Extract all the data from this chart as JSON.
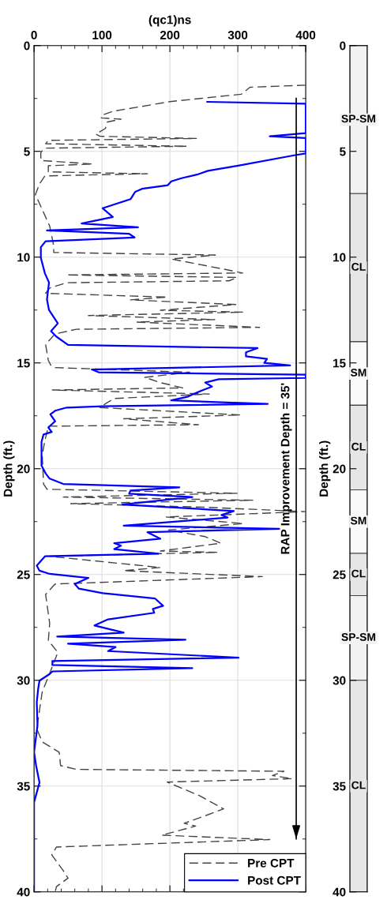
{
  "chart_data": [
    {
      "type": "line",
      "xlabel": "(qc1)ns",
      "ylabel": "Depth (ft.)",
      "xlim": [
        0,
        400
      ],
      "ylim": [
        40,
        0
      ],
      "xticks": [
        0,
        {
          "value": 20,
          "label": null
        },
        {
          "value": 40,
          "label": null
        },
        {
          "value": 60,
          "label": null
        },
        {
          "value": 80,
          "label": null
        },
        100,
        {
          "value": 120,
          "label": null
        },
        {
          "value": 140,
          "label": null
        },
        {
          "value": 160,
          "label": null
        },
        {
          "value": 180,
          "label": null
        },
        200,
        {
          "value": 220,
          "label": null
        },
        {
          "value": 240,
          "label": null
        },
        {
          "value": 260,
          "label": null
        },
        {
          "value": 280,
          "label": null
        },
        300,
        {
          "value": 320,
          "label": null
        },
        {
          "value": 340,
          "label": null
        },
        {
          "value": 360,
          "label": null
        },
        {
          "value": 380,
          "label": null
        },
        400
      ],
      "yticks": [
        0,
        {
          "value": 2.5,
          "label": null
        },
        5,
        {
          "value": 7.5,
          "label": null
        },
        10,
        {
          "value": 12.5,
          "label": null
        },
        15,
        {
          "value": 17.5,
          "label": null
        },
        20,
        {
          "value": 22.5,
          "label": null
        },
        25,
        {
          "value": 27.5,
          "label": null
        },
        30,
        {
          "value": 32.5,
          "label": null
        },
        35,
        {
          "value": 37.5,
          "label": null
        },
        40
      ],
      "grid": true,
      "legend": "bottom right",
      "series": [
        {
          "name": "Pre CPT",
          "color": "#444444",
          "line_style": "dashed",
          "x": [
            400,
            318,
            305,
            200,
            116,
            99,
            99,
            128,
            108,
            105,
            91,
            97,
            239,
            21,
            17,
            225,
            16,
            10,
            10,
            87,
            21,
            21,
            167,
            16,
            8,
            2,
            23,
            29,
            29,
            267,
            202,
            283,
            307,
            48,
            299,
            287,
            48,
            23,
            17,
            196,
            142,
            297,
            186,
            308,
            80,
            266,
            151,
            332,
            62,
            31,
            17,
            21,
            25,
            31,
            229,
            163,
            186,
            219,
            27,
            258,
            118,
            107,
            97,
            304,
            132,
            242,
            21,
            16,
            12,
            14,
            19,
            299,
            43,
            322,
            54,
            252,
            400,
            194,
            308,
            198,
            252,
            275,
            186,
            271,
            23,
            186,
            132,
            336,
            31,
            17,
            23,
            21,
            35,
            23,
            12,
            4,
            12,
            37,
            39,
            62,
            368,
            351,
            380,
            196,
            244,
            279,
            248,
            221,
            238,
            188,
            347,
            33,
            26,
            43,
            50,
            33,
            31
          ],
          "values": [
            1.87,
            1.97,
            2.3,
            2.65,
            3.11,
            3.3,
            3.42,
            3.48,
            3.61,
            3.92,
            4.19,
            4.29,
            4.39,
            4.48,
            4.64,
            4.76,
            4.85,
            5.04,
            5.43,
            5.6,
            5.68,
            5.97,
            6.06,
            6.16,
            6.54,
            7.04,
            8.53,
            9.47,
            9.78,
            9.9,
            10.09,
            10.59,
            10.75,
            10.84,
            10.96,
            11.12,
            11.21,
            11.46,
            11.71,
            11.89,
            12.02,
            12.24,
            12.51,
            12.6,
            12.76,
            12.95,
            13.07,
            13.32,
            13.41,
            13.63,
            14.13,
            14.88,
            15.13,
            15.22,
            15.44,
            15.68,
            15.93,
            16.18,
            16.28,
            16.47,
            16.68,
            16.89,
            17.11,
            17.46,
            17.64,
            17.92,
            17.99,
            18.67,
            19.35,
            20.72,
            20.97,
            21.16,
            21.34,
            21.49,
            21.65,
            21.82,
            22.03,
            22.28,
            22.59,
            22.9,
            23.21,
            23.52,
            23.89,
            23.95,
            24.14,
            24.67,
            24.82,
            25.1,
            25.45,
            25.94,
            27.31,
            28.12,
            28.68,
            29.67,
            30.55,
            32.29,
            32.91,
            33.4,
            34.03,
            34.21,
            34.3,
            34.5,
            34.65,
            34.81,
            35.46,
            36.08,
            36.45,
            36.76,
            36.89,
            37.32,
            37.53,
            37.88,
            38.25,
            39.0,
            39.35,
            39.75,
            40.0
          ]
        },
        {
          "name": "Post CPT",
          "color": "#0000ff",
          "line_style": "solid",
          "x": [
            255,
            400,
            400,
            347,
            400,
            400,
            386,
            302,
            256,
            240,
            217,
            202,
            197,
            159,
            149,
            142,
            101,
            116,
            70,
            153,
            19,
            140,
            148,
            17,
            10,
            10,
            16,
            22,
            19,
            22,
            35,
            25,
            33,
            50,
            329,
            312,
            312,
            343,
            339,
            377,
            85,
            95,
            400,
            400,
            272,
            252,
            262,
            252,
            233,
            227,
            202,
            344,
            101,
            48,
            31,
            24,
            31,
            21,
            26,
            14,
            11,
            11,
            17,
            23,
            43,
            214,
            142,
            140,
            233,
            130,
            294,
            276,
            285,
            132,
            361,
            167,
            186,
            118,
            128,
            118,
            183,
            16,
            4,
            8,
            23,
            80,
            60,
            66,
            101,
            178,
            190,
            175,
            177,
            109,
            89,
            132,
            34,
            223,
            50,
            120,
            109,
            301,
            27,
            27,
            233,
            27,
            23,
            8,
            6,
            4,
            5,
            5,
            0,
            3,
            8,
            0,
            0
          ],
          "values": [
            2.66,
            2.75,
            4.14,
            4.29,
            4.37,
            5.1,
            5.17,
            5.67,
            5.92,
            6.1,
            6.27,
            6.42,
            6.6,
            6.77,
            6.91,
            7.26,
            7.69,
            8.1,
            8.41,
            8.59,
            8.74,
            8.9,
            9.07,
            9.25,
            9.53,
            10.03,
            10.77,
            11.2,
            12.0,
            12.5,
            13.13,
            13.5,
            13.76,
            14.15,
            14.3,
            14.5,
            14.69,
            14.81,
            15.0,
            15.12,
            15.31,
            15.44,
            15.56,
            15.71,
            15.77,
            15.93,
            16.12,
            16.24,
            16.49,
            16.59,
            16.77,
            16.94,
            17.05,
            17.11,
            17.26,
            17.43,
            17.76,
            18.05,
            18.26,
            18.38,
            18.73,
            19.85,
            20.22,
            20.47,
            20.72,
            20.88,
            21.03,
            21.18,
            21.34,
            21.69,
            22.0,
            22.19,
            22.31,
            22.69,
            22.84,
            23.0,
            23.31,
            23.52,
            23.64,
            23.8,
            24.02,
            24.14,
            24.58,
            24.82,
            24.97,
            25.16,
            25.45,
            25.67,
            25.88,
            26.13,
            26.48,
            26.63,
            26.81,
            27.12,
            27.41,
            27.75,
            27.93,
            28.08,
            28.27,
            28.43,
            28.62,
            28.93,
            29.09,
            29.28,
            29.43,
            29.58,
            29.7,
            30.02,
            30.42,
            31.04,
            32.04,
            32.16,
            33.4,
            34.03,
            34.83,
            35.77,
            40.0
          ]
        }
      ],
      "annotations": [
        "RAP Improvement Depth = 35'"
      ],
      "ref_lines": [
        {
          "axis": "x",
          "value": 386,
          "color": "#000000",
          "line_style": "solid"
        }
      ]
    },
    {
      "type": "bar",
      "stacked": true,
      "ylabel": "Depth (ft.)",
      "ylim": [
        40,
        0
      ],
      "yticks": [
        0,
        5,
        10,
        15,
        20,
        25,
        30,
        35,
        40
      ],
      "categories": [
        null
      ],
      "series": [
        {
          "name": "SP-SM",
          "color": "#f2f2f2",
          "values": [
            7
          ]
        },
        {
          "name": "CL",
          "color": "#e6e6e6",
          "values": [
            7
          ]
        },
        {
          "name": "SM",
          "color": "#fafafa",
          "values": [
            3
          ]
        },
        {
          "name": "CL",
          "color": "#e6e6e6",
          "values": [
            4
          ]
        },
        {
          "name": "SM",
          "color": "#fafafa",
          "values": [
            3
          ]
        },
        {
          "name": "CL",
          "color": "#e6e6e6",
          "values": [
            2
          ]
        },
        {
          "name": "SP-SM",
          "color": "#f2f2f2",
          "values": [
            4
          ]
        },
        {
          "name": "CL",
          "color": "#e6e6e6",
          "values": [
            10
          ]
        }
      ]
    }
  ]
}
